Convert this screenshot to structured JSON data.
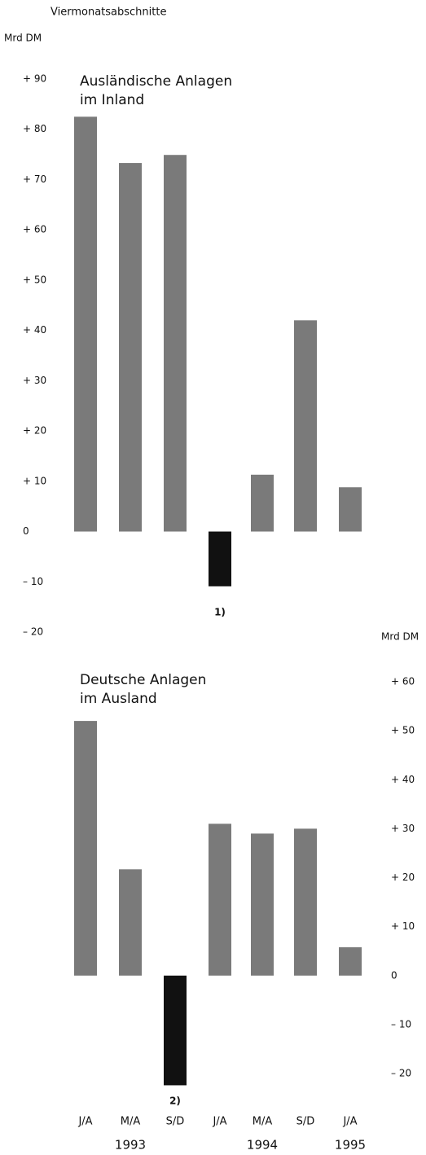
{
  "header": "Viermonatsabschnitte",
  "chart_data": [
    {
      "type": "bar",
      "title": [
        "Ausländische Anlagen",
        "im Inland"
      ],
      "unit": "Mrd DM",
      "axis_side": "left",
      "values": [
        82.5,
        73.3,
        74.9,
        -10.9,
        11.3,
        42,
        8.8
      ],
      "color": "#7a7a7a",
      "negative_color": "#111111",
      "annotations": [
        {
          "index": 3,
          "text": "1)"
        }
      ],
      "ylim": [
        -20,
        90
      ],
      "yticks": [
        {
          "value": 90,
          "label": "+ 90"
        },
        {
          "value": 80,
          "label": "+ 80"
        },
        {
          "value": 70,
          "label": "+ 70"
        },
        {
          "value": 60,
          "label": "+ 60"
        },
        {
          "value": 50,
          "label": "+ 50"
        },
        {
          "value": 40,
          "label": "+ 40"
        },
        {
          "value": 30,
          "label": "+ 30"
        },
        {
          "value": 20,
          "label": "+ 20"
        },
        {
          "value": 10,
          "label": "+ 10"
        },
        0,
        {
          "value": -10,
          "label": "– 10"
        },
        {
          "value": -20,
          "label": "– 20"
        }
      ]
    },
    {
      "type": "bar",
      "title": [
        "Deutsche Anlagen",
        "im Ausland"
      ],
      "unit": "Mrd DM",
      "axis_side": "right",
      "categories": [
        "J/A",
        "M/A",
        "S/D",
        "J/A",
        "M/A",
        "S/D",
        "J/A"
      ],
      "x_groups": [
        {
          "label": "1993",
          "index": 1
        },
        {
          "label": "1994",
          "index": 4
        },
        {
          "label": "1995",
          "index": 6
        }
      ],
      "values": [
        52,
        21.7,
        -22.4,
        31,
        29,
        30,
        5.8
      ],
      "color": "#7a7a7a",
      "negative_color": "#111111",
      "annotations": [
        {
          "index": 2,
          "text": "2)"
        }
      ],
      "ylim": [
        -20,
        60
      ],
      "yticks": [
        {
          "value": 60,
          "label": "+ 60"
        },
        {
          "value": 50,
          "label": "+ 50"
        },
        {
          "value": 40,
          "label": "+ 40"
        },
        {
          "value": 30,
          "label": "+ 30"
        },
        {
          "value": 20,
          "label": "+ 20"
        },
        {
          "value": 10,
          "label": "+ 10"
        },
        0,
        {
          "value": -10,
          "label": "– 10"
        },
        {
          "value": -20,
          "label": "– 20"
        }
      ]
    }
  ]
}
